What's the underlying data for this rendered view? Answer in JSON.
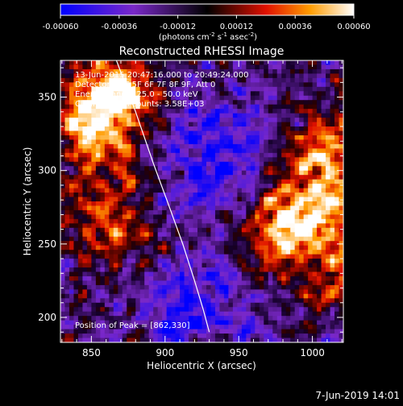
{
  "colorbar": {
    "tick_labels": [
      "-0.00060",
      "-0.00036",
      "-0.00012",
      "0.00012",
      "0.00036",
      "0.00060"
    ],
    "unit_label": "(photons cm",
    "unit_sup1": "-2",
    "unit_mid": " s",
    "unit_sup2": "-1",
    "unit_end": " asec",
    "unit_sup3": "-2",
    "unit_close": ")"
  },
  "chart_data": {
    "type": "heatmap",
    "title": "Reconstructed RHESSI Image",
    "xlabel": "Heliocentric X (arcsec)",
    "ylabel": "Heliocentric Y (arcsec)",
    "xlim": [
      829,
      1021
    ],
    "ylim": [
      183,
      375
    ],
    "xticks": [
      850,
      900,
      950,
      1000
    ],
    "yticks": [
      200,
      250,
      300,
      350
    ],
    "color_range": [
      -0.0006,
      0.0006
    ],
    "colormap": "IDL color table 5 (blue-purple-black-red-yellow-white)",
    "limb_curve": {
      "x": [
        867,
        880,
        892,
        903,
        912,
        920,
        926,
        930
      ],
      "y": [
        375,
        340,
        305,
        275,
        250,
        225,
        205,
        190
      ]
    },
    "peak_position": [
      862,
      330
    ],
    "annotations": [
      "13-Jun-2015 20:47:16.000 to 20:49:24.000",
      "Detectors: 3F 5F 6F 7F 8F 9F, Att 0",
      "Energy Range: 25.0 - 50.0 keV",
      "Clean     Total counts: 3.58E+03",
      "Position of Peak = [862,330]"
    ],
    "footer_date": "7-Jun-2019 14:01"
  }
}
